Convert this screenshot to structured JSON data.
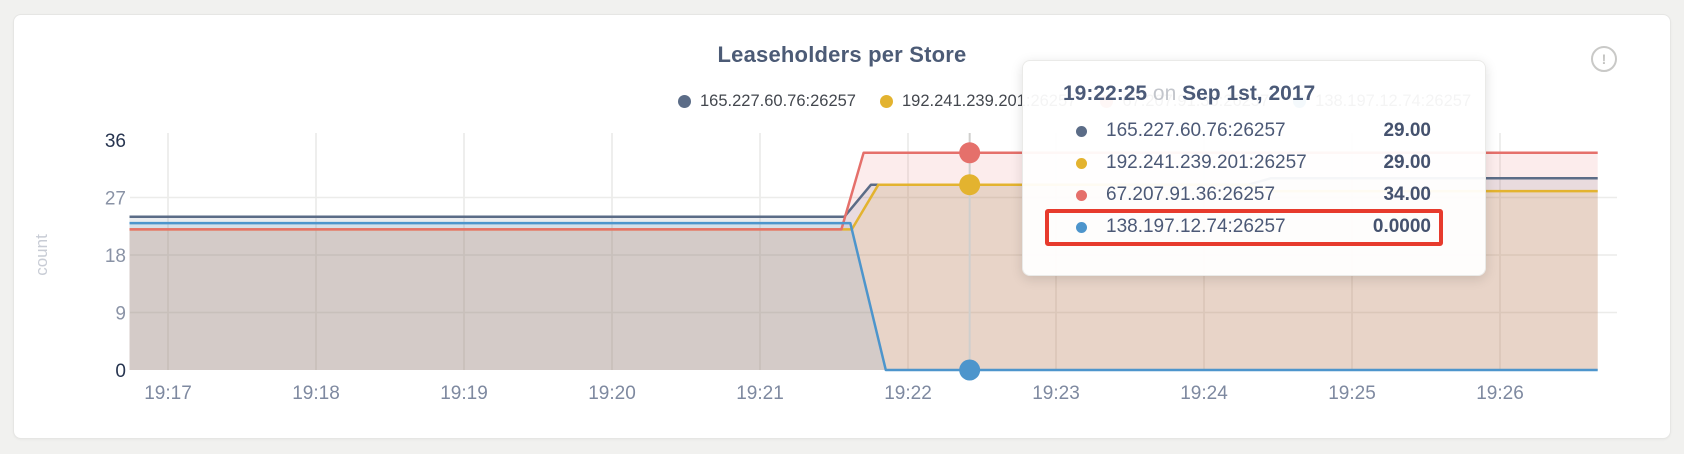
{
  "card": {
    "title": "Leaseholders per Store",
    "alert_glyph": "!"
  },
  "y_axis": {
    "unit_label": "count"
  },
  "tooltip": {
    "time": "19:22:25",
    "separator": "on",
    "date": "Sep 1st, 2017",
    "rows": [
      {
        "label": "165.227.60.76:26257",
        "value": "29.00",
        "series": 0
      },
      {
        "label": "192.241.239.201:26257",
        "value": "29.00",
        "series": 1
      },
      {
        "label": "67.207.91.36:26257",
        "value": "34.00",
        "series": 2
      },
      {
        "label": "138.197.12.74:26257",
        "value": "0.0000",
        "series": 3
      }
    ],
    "highlighted_row_index": 3,
    "highlight_color": "#e73b2d"
  },
  "chart_data": {
    "type": "area",
    "title": "Leaseholders per Store",
    "ylabel": "count",
    "ylim": [
      0,
      36
    ],
    "y_ticks": [
      0,
      9,
      18,
      27,
      36
    ],
    "grid_y": [
      9,
      18,
      27
    ],
    "grid": true,
    "legend_position": "top",
    "x_ticks": [
      {
        "t": 17,
        "label": "19:17"
      },
      {
        "t": 18,
        "label": "19:18"
      },
      {
        "t": 19,
        "label": "19:19"
      },
      {
        "t": 20,
        "label": "19:20"
      },
      {
        "t": 21,
        "label": "19:21"
      },
      {
        "t": 22,
        "label": "19:22"
      },
      {
        "t": 23,
        "label": "19:23"
      },
      {
        "t": 24,
        "label": "19:24"
      },
      {
        "t": 25,
        "label": "19:25"
      },
      {
        "t": 26,
        "label": "19:26"
      }
    ],
    "x_domain_minutes": [
      16.74,
      26.66
    ],
    "series": [
      {
        "name": "165.227.60.76:26257",
        "color": "#5b6c87",
        "points": [
          [
            16.74,
            24
          ],
          [
            21.57,
            24
          ],
          [
            21.75,
            29
          ],
          [
            24.3,
            29
          ],
          [
            24.45,
            30
          ],
          [
            26.66,
            30
          ]
        ]
      },
      {
        "name": "192.241.239.201:26257",
        "color": "#e3b32f",
        "points": [
          [
            16.74,
            22
          ],
          [
            21.62,
            22
          ],
          [
            21.8,
            29
          ],
          [
            24.3,
            29
          ],
          [
            24.45,
            28
          ],
          [
            26.66,
            28
          ]
        ]
      },
      {
        "name": "67.207.91.36:26257",
        "color": "#e5706b",
        "points": [
          [
            16.74,
            22
          ],
          [
            21.55,
            22
          ],
          [
            21.7,
            34
          ],
          [
            26.66,
            34
          ]
        ]
      },
      {
        "name": "138.197.12.74:26257",
        "color": "#4d95cc",
        "points": [
          [
            16.74,
            23
          ],
          [
            21.61,
            23
          ],
          [
            21.85,
            0
          ],
          [
            26.66,
            0
          ]
        ]
      }
    ],
    "hover": {
      "t_minutes": 22.4167,
      "time_label": "19:22:25",
      "marked_points": [
        {
          "series": 2,
          "value": 34
        },
        {
          "series": 1,
          "value": 29
        },
        {
          "series": 3,
          "value": 0
        }
      ]
    }
  }
}
